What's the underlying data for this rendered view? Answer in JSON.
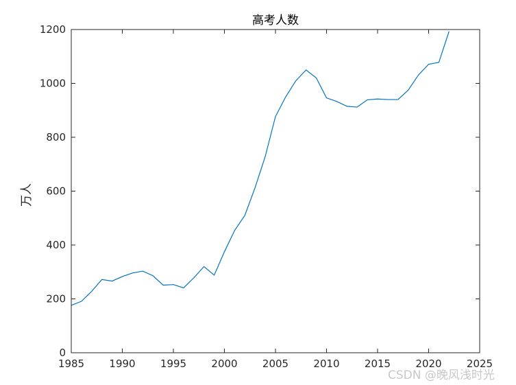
{
  "chart_data": {
    "type": "line",
    "title": "高考人数",
    "xlabel": "",
    "ylabel": "万人",
    "xlim": [
      1985,
      2025
    ],
    "ylim": [
      0,
      1200
    ],
    "xticks": [
      1985,
      1990,
      1995,
      2000,
      2005,
      2010,
      2015,
      2020,
      2025
    ],
    "yticks": [
      0,
      200,
      400,
      600,
      800,
      1000,
      1200
    ],
    "grid": false,
    "line_color": "#0072BD",
    "series": [
      {
        "x": [
          1985,
          1986,
          1987,
          1988,
          1989,
          1990,
          1991,
          1992,
          1993,
          1994,
          1995,
          1996,
          1997,
          1998,
          1999,
          2000,
          2001,
          2002,
          2003,
          2004,
          2005,
          2006,
          2007,
          2008,
          2009,
          2010,
          2011,
          2012,
          2013,
          2014,
          2015,
          2016,
          2017,
          2018,
          2019,
          2020,
          2021,
          2022
        ],
        "y": [
          176,
          191,
          228,
          272,
          266,
          283,
          296,
          303,
          286,
          251,
          253,
          241,
          278,
          320,
          288,
          375,
          454,
          510,
          613,
          729,
          877,
          950,
          1010,
          1050,
          1020,
          946,
          933,
          915,
          912,
          939,
          942,
          940,
          940,
          975,
          1031,
          1071,
          1078,
          1193
        ]
      }
    ]
  },
  "watermark": "CSDN @晚风浅时光"
}
